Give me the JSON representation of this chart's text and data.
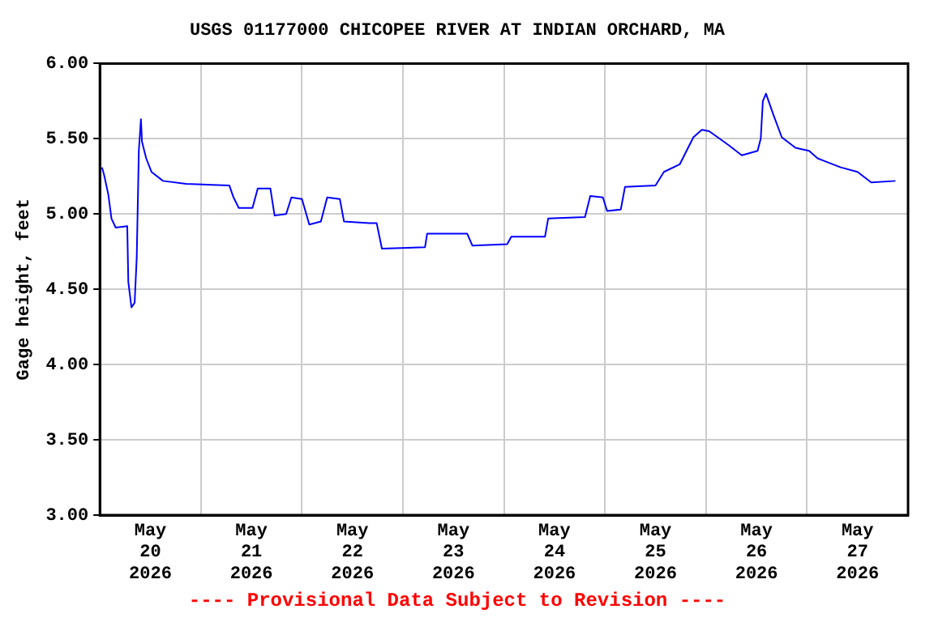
{
  "chart_data": {
    "type": "line",
    "title": "USGS 01177000 CHICOPEE RIVER AT INDIAN ORCHARD, MA",
    "ylabel": "Gage height, feet",
    "annotations": [
      "---- Provisional Data Subject to Revision ----"
    ],
    "xlim": [
      "2026-05-20T00:00",
      "2026-05-28T00:00"
    ],
    "xticks": [
      {
        "value": "2026-05-20T12:00",
        "label": "May\n20\n2026"
      },
      {
        "value": "2026-05-21T00:00",
        "label": null
      },
      {
        "value": "2026-05-21T12:00",
        "label": "May\n21\n2026"
      },
      {
        "value": "2026-05-22T00:00",
        "label": null
      },
      {
        "value": "2026-05-22T12:00",
        "label": "May\n22\n2026"
      },
      {
        "value": "2026-05-23T00:00",
        "label": null
      },
      {
        "value": "2026-05-23T12:00",
        "label": "May\n23\n2026"
      },
      {
        "value": "2026-05-24T00:00",
        "label": null
      },
      {
        "value": "2026-05-24T12:00",
        "label": "May\n24\n2026"
      },
      {
        "value": "2026-05-25T00:00",
        "label": null
      },
      {
        "value": "2026-05-25T12:00",
        "label": "May\n25\n2026"
      },
      {
        "value": "2026-05-26T00:00",
        "label": null
      },
      {
        "value": "2026-05-26T12:00",
        "label": "May\n26\n2026"
      },
      {
        "value": "2026-05-27T00:00",
        "label": null
      },
      {
        "value": "2026-05-27T12:00",
        "label": "May\n27\n2026"
      }
    ],
    "ylim": [
      3,
      6
    ],
    "yticks": [
      {
        "value": 3,
        "label": "3.00"
      },
      {
        "value": 3.5,
        "label": "3.50"
      },
      {
        "value": 4,
        "label": "4.00"
      },
      {
        "value": 4.5,
        "label": "4.50"
      },
      {
        "value": 5,
        "label": "5.00"
      },
      {
        "value": 5.5,
        "label": "5.50"
      },
      {
        "value": 6,
        "label": "6.00"
      }
    ],
    "grid": true,
    "legend": false,
    "marker": "none",
    "line_style": "solid",
    "series": [
      {
        "color": "#0000ff",
        "x": [
          "2026-05-20T00:30",
          "2026-05-20T01:00",
          "2026-05-20T02:00",
          "2026-05-20T02:45",
          "2026-05-20T03:45",
          "2026-05-20T06:30",
          "2026-05-20T06:45",
          "2026-05-20T07:30",
          "2026-05-20T08:15",
          "2026-05-20T08:45",
          "2026-05-20T09:15",
          "2026-05-20T09:45",
          "2026-05-20T10:00",
          "2026-05-20T11:00",
          "2026-05-20T12:15",
          "2026-05-20T15:00",
          "2026-05-20T20:30",
          "2026-05-21T06:45",
          "2026-05-21T07:45",
          "2026-05-21T09:00",
          "2026-05-21T12:15",
          "2026-05-21T13:30",
          "2026-05-21T16:30",
          "2026-05-21T17:30",
          "2026-05-21T20:15",
          "2026-05-21T21:30",
          "2026-05-22T00:00",
          "2026-05-22T01:45",
          "2026-05-22T04:30",
          "2026-05-22T06:00",
          "2026-05-22T09:00",
          "2026-05-22T10:00",
          "2026-05-22T16:00",
          "2026-05-22T17:45",
          "2026-05-22T19:00",
          "2026-05-23T05:15",
          "2026-05-23T05:45",
          "2026-05-23T15:15",
          "2026-05-23T16:30",
          "2026-05-24T00:45",
          "2026-05-24T01:45",
          "2026-05-24T09:45",
          "2026-05-24T10:30",
          "2026-05-24T19:15",
          "2026-05-24T20:30",
          "2026-05-24T23:30",
          "2026-05-25T00:30",
          "2026-05-25T03:45",
          "2026-05-25T04:45",
          "2026-05-25T12:00",
          "2026-05-25T14:00",
          "2026-05-25T17:45",
          "2026-05-25T21:00",
          "2026-05-25T23:00",
          "2026-05-26T00:45",
          "2026-05-26T05:15",
          "2026-05-26T08:30",
          "2026-05-26T12:15",
          "2026-05-26T13:00",
          "2026-05-26T13:30",
          "2026-05-26T14:15",
          "2026-05-26T16:00",
          "2026-05-26T18:00",
          "2026-05-26T21:15",
          "2026-05-27T00:30",
          "2026-05-27T02:30",
          "2026-05-27T08:00",
          "2026-05-27T12:00",
          "2026-05-27T15:15",
          "2026-05-27T21:00"
        ],
        "values": [
          5.31,
          5.26,
          5.13,
          4.97,
          4.91,
          4.92,
          4.55,
          4.38,
          4.41,
          4.71,
          5.42,
          5.63,
          5.48,
          5.37,
          5.28,
          5.22,
          5.2,
          5.19,
          5.11,
          5.04,
          5.04,
          5.17,
          5.17,
          4.99,
          5.0,
          5.11,
          5.1,
          4.93,
          4.95,
          5.11,
          5.1,
          4.95,
          4.94,
          4.94,
          4.77,
          4.78,
          4.87,
          4.87,
          4.79,
          4.8,
          4.85,
          4.85,
          4.97,
          4.98,
          5.12,
          5.11,
          5.02,
          5.03,
          5.18,
          5.19,
          5.28,
          5.33,
          5.51,
          5.56,
          5.55,
          5.46,
          5.39,
          5.42,
          5.5,
          5.75,
          5.8,
          5.66,
          5.51,
          5.44,
          5.42,
          5.37,
          5.31,
          5.28,
          5.21,
          5.22
        ]
      }
    ]
  }
}
